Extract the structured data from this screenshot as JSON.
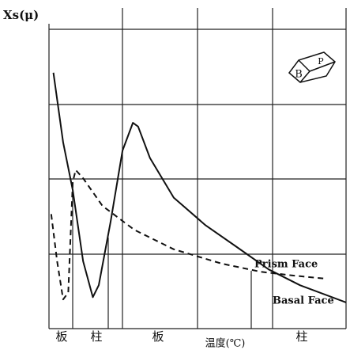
{
  "chart_data": {
    "type": "line",
    "y_label": "Xs(μ)",
    "x_label": "温度(℃)",
    "bottom_labels": [
      "板",
      "柱",
      "板",
      "柱"
    ],
    "icon_labels": [
      "B",
      "P"
    ],
    "xlim": [
      0,
      4
    ],
    "ylim": [
      0,
      4
    ],
    "series": [
      {
        "name": "Basal Face",
        "color": "#111111",
        "style": "solid",
        "x": [
          0.06,
          0.19,
          0.32,
          0.46,
          0.59,
          0.67,
          0.83,
          0.99,
          1.13,
          1.2,
          1.36,
          1.68,
          2.11,
          2.53,
          2.96,
          3.38,
          4.0
        ],
        "values": [
          3.42,
          2.49,
          1.85,
          0.9,
          0.42,
          0.58,
          1.43,
          2.38,
          2.75,
          2.7,
          2.28,
          1.75,
          1.38,
          1.09,
          0.79,
          0.58,
          0.35
        ]
      },
      {
        "name": "Prism Face",
        "color": "#111111",
        "style": "dashed",
        "x": [
          0.03,
          0.11,
          0.19,
          0.26,
          0.32,
          0.36,
          0.46,
          0.72,
          1.15,
          1.68,
          2.32,
          2.85,
          3.28,
          3.7
        ],
        "values": [
          1.53,
          0.9,
          0.39,
          0.48,
          1.96,
          2.12,
          2.01,
          1.64,
          1.32,
          1.06,
          0.87,
          0.76,
          0.71,
          0.67
        ]
      }
    ]
  }
}
